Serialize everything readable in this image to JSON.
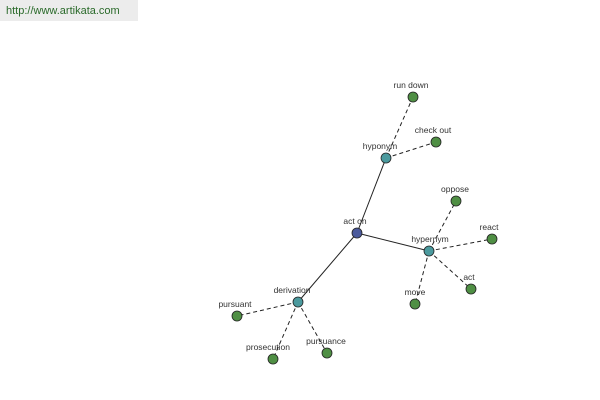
{
  "header": {
    "url": "http://www.artikata.com"
  },
  "nodes": [
    {
      "label": "act on"
    },
    {
      "label": "hyponym"
    },
    {
      "label": "hypernym"
    },
    {
      "label": "derivation"
    },
    {
      "label": "run down"
    },
    {
      "label": "check out"
    },
    {
      "label": "oppose"
    },
    {
      "label": "react"
    },
    {
      "label": "act"
    },
    {
      "label": "move"
    },
    {
      "label": "pursuant"
    },
    {
      "label": "prosecution"
    },
    {
      "label": "pursuance"
    }
  ]
}
